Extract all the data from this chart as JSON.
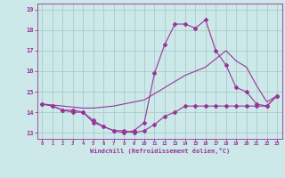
{
  "xlabel": "Windchill (Refroidissement éolien,°C)",
  "bg_color": "#cce8e8",
  "grid_color": "#aacccc",
  "line_color": "#993399",
  "xlim": [
    -0.5,
    23.5
  ],
  "ylim": [
    12.7,
    19.3
  ],
  "yticks": [
    13,
    14,
    15,
    16,
    17,
    18,
    19
  ],
  "xticks": [
    0,
    1,
    2,
    3,
    4,
    5,
    6,
    7,
    8,
    9,
    10,
    11,
    12,
    13,
    14,
    15,
    16,
    17,
    18,
    19,
    20,
    21,
    22,
    23
  ],
  "hours": [
    0,
    1,
    2,
    3,
    4,
    5,
    6,
    7,
    8,
    9,
    10,
    11,
    12,
    13,
    14,
    15,
    16,
    17,
    18,
    19,
    20,
    21,
    22,
    23
  ],
  "windchill_line": [
    14.4,
    14.3,
    14.1,
    14.0,
    14.0,
    13.6,
    13.3,
    13.1,
    13.0,
    13.1,
    13.5,
    15.9,
    17.3,
    18.3,
    18.3,
    18.1,
    18.5,
    17.0,
    16.3,
    15.2,
    15.0,
    14.4,
    14.3,
    14.8
  ],
  "temp_line": [
    14.4,
    14.3,
    14.1,
    14.1,
    14.0,
    13.5,
    13.3,
    13.1,
    13.1,
    13.0,
    13.1,
    13.4,
    13.8,
    14.0,
    14.3,
    14.3,
    14.3,
    14.3,
    14.3,
    14.3,
    14.3,
    14.3,
    14.3,
    14.8
  ],
  "trend_line": [
    14.4,
    14.35,
    14.3,
    14.25,
    14.2,
    14.2,
    14.25,
    14.3,
    14.4,
    14.5,
    14.6,
    14.9,
    15.2,
    15.5,
    15.8,
    16.0,
    16.2,
    16.6,
    17.0,
    16.5,
    16.2,
    15.3,
    14.5,
    14.8
  ]
}
